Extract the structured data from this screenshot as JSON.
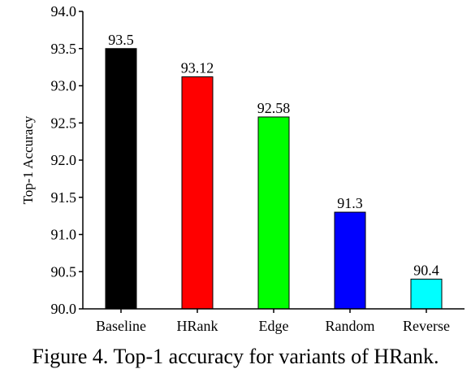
{
  "caption": "Figure 4. Top-1 accuracy for variants of HRank.",
  "chart_data": {
    "type": "bar",
    "categories": [
      "Baseline",
      "HRank",
      "Edge",
      "Random",
      "Reverse"
    ],
    "values": [
      93.5,
      93.12,
      92.58,
      91.3,
      90.4
    ],
    "value_labels": [
      "93.5",
      "93.12",
      "92.58",
      "91.3",
      "90.4"
    ],
    "colors": [
      "#000000",
      "#ff0000",
      "#00ff00",
      "#0000ff",
      "#00ffff"
    ],
    "title": "",
    "xlabel": "",
    "ylabel": "Top-1 Accuracy",
    "ylim": [
      90.0,
      94.0
    ],
    "yticks": [
      "90.0",
      "90.5",
      "91.0",
      "91.5",
      "92.0",
      "92.5",
      "93.0",
      "93.5",
      "94.0"
    ],
    "grid": false,
    "legend": "none"
  }
}
